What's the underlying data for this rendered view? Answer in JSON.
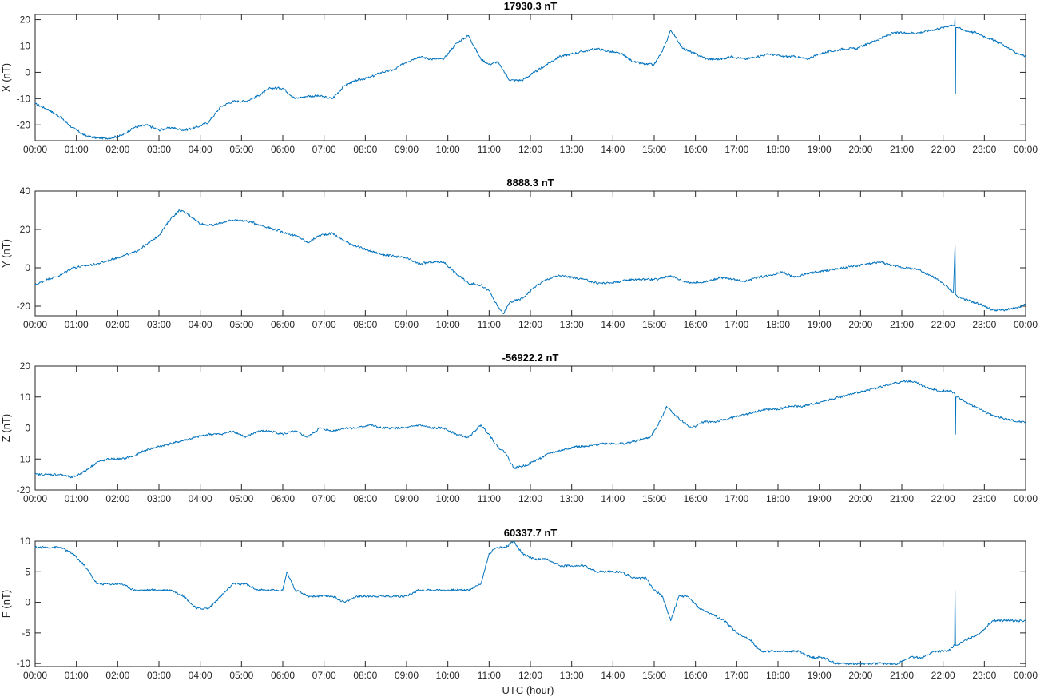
{
  "figure": {
    "xlabel": "UTC (hour)",
    "line_color": "#0072BD"
  },
  "chart_data": [
    {
      "type": "line",
      "title": "17930.3 nT",
      "ylabel": "X (nT)",
      "xlim": [
        0,
        24
      ],
      "ylim": [
        -26,
        22
      ],
      "yticks": [
        -20,
        -10,
        0,
        10,
        20
      ],
      "xticks": [
        "00:00",
        "01:00",
        "02:00",
        "03:00",
        "04:00",
        "05:00",
        "06:00",
        "07:00",
        "08:00",
        "09:00",
        "10:00",
        "11:00",
        "12:00",
        "13:00",
        "14:00",
        "15:00",
        "16:00",
        "17:00",
        "18:00",
        "19:00",
        "20:00",
        "21:00",
        "22:00",
        "23:00",
        "00:00"
      ],
      "grid": false,
      "series": [
        {
          "x": [
            0,
            0.3,
            0.6,
            0.9,
            1.2,
            1.5,
            1.8,
            2.1,
            2.4,
            2.7,
            3.0,
            3.3,
            3.6,
            3.9,
            4.2,
            4.5,
            4.8,
            5.1,
            5.4,
            5.7,
            6.0,
            6.3,
            6.6,
            6.9,
            7.2,
            7.5,
            7.8,
            8.1,
            8.4,
            8.7,
            9.0,
            9.3,
            9.6,
            9.9,
            10.2,
            10.5,
            10.8,
            11.0,
            11.2,
            11.5,
            11.8,
            12.1,
            12.4,
            12.7,
            13.0,
            13.3,
            13.6,
            13.9,
            14.2,
            14.5,
            14.8,
            15.0,
            15.2,
            15.4,
            15.7,
            16.0,
            16.3,
            16.6,
            16.9,
            17.2,
            17.5,
            17.8,
            18.1,
            18.4,
            18.7,
            19.0,
            19.3,
            19.6,
            19.9,
            20.2,
            20.5,
            20.8,
            21.1,
            21.4,
            21.7,
            22.0,
            22.2,
            22.28,
            22.29,
            22.3,
            22.31,
            22.32,
            22.35,
            22.5,
            22.8,
            23.1,
            23.4,
            23.7,
            24.0
          ],
          "y": [
            -12,
            -14,
            -17,
            -21,
            -24,
            -25,
            -25,
            -24,
            -21,
            -20,
            -22,
            -21,
            -22,
            -21,
            -19,
            -13,
            -11,
            -11,
            -9,
            -6,
            -6,
            -10,
            -9,
            -9,
            -10,
            -5,
            -3,
            -2,
            0,
            1,
            4,
            6,
            5,
            5,
            11,
            14,
            5,
            3,
            4,
            -3,
            -3,
            0,
            3,
            6,
            7,
            8,
            9,
            8,
            7,
            4,
            3,
            3,
            8,
            16,
            9,
            7,
            5,
            5,
            6,
            5,
            6,
            7,
            6,
            6,
            5,
            7,
            8,
            9,
            9,
            11,
            13,
            15,
            15,
            15,
            16,
            17,
            18,
            18,
            21,
            -8,
            17,
            17,
            17,
            16,
            15,
            13,
            11,
            8,
            6
          ]
        }
      ]
    },
    {
      "type": "line",
      "title": "8888.3 nT",
      "ylabel": "Y (nT)",
      "xlim": [
        0,
        24
      ],
      "ylim": [
        -25,
        40
      ],
      "yticks": [
        -20,
        0,
        20,
        40
      ],
      "xticks": [
        "00:00",
        "01:00",
        "02:00",
        "03:00",
        "04:00",
        "05:00",
        "06:00",
        "07:00",
        "08:00",
        "09:00",
        "10:00",
        "11:00",
        "12:00",
        "13:00",
        "14:00",
        "15:00",
        "16:00",
        "17:00",
        "18:00",
        "19:00",
        "20:00",
        "21:00",
        "22:00",
        "23:00",
        "00:00"
      ],
      "grid": false,
      "series": [
        {
          "x": [
            0,
            0.3,
            0.6,
            0.9,
            1.2,
            1.5,
            1.8,
            2.1,
            2.4,
            2.7,
            3.0,
            3.3,
            3.5,
            3.7,
            4.0,
            4.3,
            4.6,
            4.9,
            5.2,
            5.5,
            5.8,
            6.1,
            6.4,
            6.6,
            6.9,
            7.2,
            7.5,
            7.8,
            8.1,
            8.4,
            8.7,
            9.0,
            9.3,
            9.6,
            9.9,
            10.2,
            10.5,
            10.8,
            11.0,
            11.2,
            11.35,
            11.5,
            11.8,
            12.1,
            12.4,
            12.7,
            13.0,
            13.3,
            13.6,
            13.9,
            14.2,
            14.5,
            14.8,
            15.1,
            15.4,
            15.7,
            16.0,
            16.3,
            16.6,
            16.9,
            17.2,
            17.5,
            17.8,
            18.1,
            18.4,
            18.7,
            19.0,
            19.3,
            19.6,
            19.9,
            20.2,
            20.5,
            20.8,
            21.1,
            21.4,
            21.7,
            22.0,
            22.25,
            22.29,
            22.3,
            22.31,
            22.35,
            22.6,
            22.9,
            23.2,
            23.5,
            23.8,
            24.0
          ],
          "y": [
            -9,
            -6,
            -4,
            0,
            1,
            2,
            4,
            6,
            8,
            12,
            17,
            26,
            30,
            28,
            23,
            22,
            24,
            25,
            24,
            22,
            20,
            18,
            16,
            13,
            17,
            18,
            14,
            11,
            9,
            7,
            6,
            5,
            2,
            3,
            3,
            -3,
            -8,
            -9,
            -12,
            -20,
            -24,
            -18,
            -16,
            -10,
            -6,
            -4,
            -5,
            -6,
            -8,
            -8,
            -7,
            -6,
            -6,
            -6,
            -4,
            -7,
            -8,
            -7,
            -5,
            -6,
            -7,
            -5,
            -4,
            -2,
            -5,
            -3,
            -2,
            -1,
            0,
            1,
            2,
            3,
            1,
            0,
            -1,
            -4,
            -8,
            -13,
            12,
            -14,
            -14,
            -15,
            -17,
            -19,
            -22,
            -22,
            -21,
            -19
          ]
        }
      ]
    },
    {
      "type": "line",
      "title": "-56922.2 nT",
      "ylabel": "Z (nT)",
      "xlim": [
        0,
        24
      ],
      "ylim": [
        -20,
        20
      ],
      "yticks": [
        -20,
        -10,
        0,
        10,
        20
      ],
      "xticks": [
        "00:00",
        "01:00",
        "02:00",
        "03:00",
        "04:00",
        "05:00",
        "06:00",
        "07:00",
        "08:00",
        "09:00",
        "10:00",
        "11:00",
        "12:00",
        "13:00",
        "14:00",
        "15:00",
        "16:00",
        "17:00",
        "18:00",
        "19:00",
        "20:00",
        "21:00",
        "22:00",
        "23:00",
        "00:00"
      ],
      "grid": false,
      "series": [
        {
          "x": [
            0,
            0.3,
            0.6,
            0.9,
            1.2,
            1.5,
            1.8,
            2.1,
            2.4,
            2.7,
            3.0,
            3.3,
            3.6,
            3.9,
            4.2,
            4.5,
            4.8,
            5.1,
            5.4,
            5.7,
            6.0,
            6.3,
            6.6,
            6.9,
            7.2,
            7.5,
            7.8,
            8.1,
            8.4,
            8.7,
            9.0,
            9.3,
            9.6,
            9.9,
            10.2,
            10.5,
            10.8,
            11.0,
            11.2,
            11.4,
            11.6,
            11.9,
            12.2,
            12.5,
            12.8,
            13.1,
            13.4,
            13.7,
            14.0,
            14.3,
            14.6,
            14.9,
            15.1,
            15.3,
            15.6,
            15.9,
            16.2,
            16.5,
            16.8,
            17.1,
            17.4,
            17.7,
            18.0,
            18.3,
            18.6,
            18.9,
            19.2,
            19.5,
            19.8,
            20.1,
            20.4,
            20.7,
            21.0,
            21.3,
            21.6,
            21.9,
            22.2,
            22.28,
            22.29,
            22.3,
            22.31,
            22.35,
            22.6,
            22.9,
            23.2,
            23.5,
            23.8,
            24.0
          ],
          "y": [
            -15,
            -15,
            -15,
            -16,
            -14,
            -11,
            -10,
            -10,
            -9,
            -7,
            -6,
            -5,
            -4,
            -3,
            -2,
            -2,
            -1,
            -3,
            -1,
            -1,
            -2,
            -1,
            -3,
            0,
            -1,
            0,
            0,
            1,
            0,
            0,
            0,
            1,
            0,
            0,
            -2,
            -3,
            1,
            -2,
            -6,
            -8,
            -13,
            -12,
            -10,
            -8,
            -7,
            -6,
            -6,
            -5,
            -5,
            -5,
            -4,
            -3,
            1,
            7,
            3,
            0,
            2,
            2,
            3,
            4,
            5,
            6,
            6,
            7,
            7,
            8,
            9,
            10,
            11,
            12,
            13,
            14,
            15,
            15,
            13,
            12,
            12,
            11,
            11,
            -2,
            10,
            10,
            8,
            6,
            4,
            3,
            2,
            2
          ]
        }
      ]
    },
    {
      "type": "line",
      "title": "60337.7 nT",
      "ylabel": "F (nT)",
      "xlabel": "UTC (hour)",
      "xlim": [
        0,
        24
      ],
      "ylim": [
        -10.5,
        10
      ],
      "yticks": [
        -10,
        -5,
        0,
        5,
        10
      ],
      "xticks": [
        "00:00",
        "01:00",
        "02:00",
        "03:00",
        "04:00",
        "05:00",
        "06:00",
        "07:00",
        "08:00",
        "09:00",
        "10:00",
        "11:00",
        "12:00",
        "13:00",
        "14:00",
        "15:00",
        "16:00",
        "17:00",
        "18:00",
        "19:00",
        "20:00",
        "21:00",
        "22:00",
        "23:00",
        "00:00"
      ],
      "grid": false,
      "series": [
        {
          "x": [
            0,
            0.3,
            0.6,
            0.9,
            1.2,
            1.5,
            1.8,
            2.1,
            2.4,
            2.7,
            3.0,
            3.3,
            3.6,
            3.9,
            4.2,
            4.5,
            4.8,
            5.1,
            5.4,
            5.7,
            6.0,
            6.1,
            6.3,
            6.6,
            6.9,
            7.2,
            7.5,
            7.8,
            8.1,
            8.4,
            8.7,
            9.0,
            9.3,
            9.6,
            9.9,
            10.2,
            10.5,
            10.8,
            11.0,
            11.2,
            11.4,
            11.6,
            11.8,
            12.1,
            12.4,
            12.7,
            13.0,
            13.3,
            13.6,
            13.9,
            14.2,
            14.5,
            14.8,
            15.0,
            15.2,
            15.4,
            15.6,
            15.8,
            16.1,
            16.4,
            16.7,
            17.0,
            17.3,
            17.6,
            17.9,
            18.2,
            18.5,
            18.8,
            19.1,
            19.4,
            19.7,
            20.0,
            20.3,
            20.6,
            20.9,
            21.2,
            21.5,
            21.8,
            22.1,
            22.28,
            22.29,
            22.3,
            22.31,
            22.35,
            22.6,
            22.9,
            23.2,
            23.5,
            23.8,
            24.0
          ],
          "y": [
            9,
            9,
            9,
            8,
            6,
            3,
            3,
            3,
            2,
            2,
            2,
            2,
            1,
            -1,
            -1,
            1,
            3,
            3,
            2,
            2,
            2,
            5,
            2,
            1,
            1,
            1,
            0,
            1,
            1,
            1,
            1,
            1,
            2,
            2,
            2,
            2,
            2,
            3,
            8,
            9,
            9,
            10,
            8,
            7,
            7,
            6,
            6,
            6,
            5,
            5,
            5,
            4,
            4,
            2,
            1,
            -3,
            1,
            1,
            -1,
            -2,
            -3,
            -5,
            -6,
            -8,
            -8,
            -8,
            -8,
            -9,
            -9,
            -10,
            -10,
            -10,
            -10,
            -10,
            -10,
            -9,
            -9,
            -8,
            -8,
            -7,
            2,
            -7,
            -7,
            -7,
            -6,
            -5,
            -3,
            -3,
            -3,
            -3
          ]
        }
      ]
    }
  ]
}
